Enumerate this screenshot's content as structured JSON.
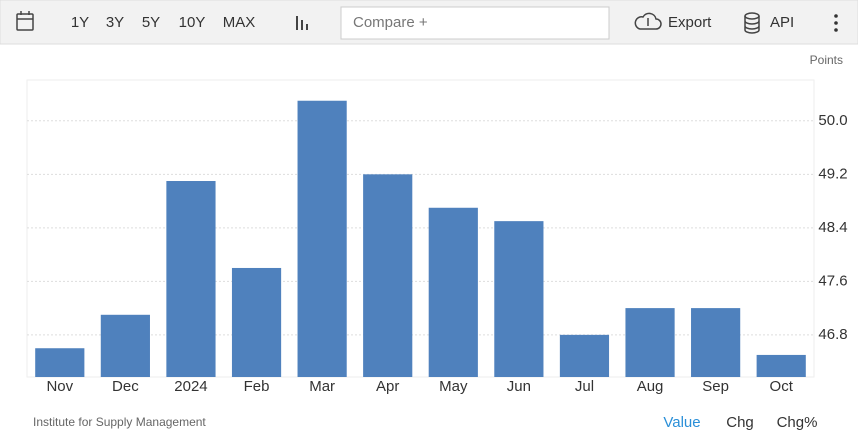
{
  "toolbar": {
    "ranges": [
      "1Y",
      "3Y",
      "5Y",
      "10Y",
      "MAX"
    ],
    "compare": "Compare +",
    "export": "Export",
    "api": "API"
  },
  "chart_data": {
    "type": "bar",
    "y_label": "Points",
    "categories": [
      "Nov",
      "Dec",
      "2024",
      "Feb",
      "Mar",
      "Apr",
      "May",
      "Jun",
      "Jul",
      "Aug",
      "Sep",
      "Oct"
    ],
    "values": [
      46.6,
      47.1,
      49.1,
      47.8,
      50.3,
      49.2,
      48.7,
      48.5,
      46.8,
      47.2,
      47.2,
      46.5
    ],
    "color": "#4f81bd",
    "ylim": [
      46.17,
      50.61
    ],
    "yticks": [
      46.8,
      47.6,
      48.4,
      49.2,
      {
        "value": 50,
        "label": "50.0"
      }
    ],
    "grid": true
  },
  "footer": {
    "source": "Institute for Supply Management",
    "views": [
      "Value",
      "Chg",
      "Chg%"
    ]
  }
}
